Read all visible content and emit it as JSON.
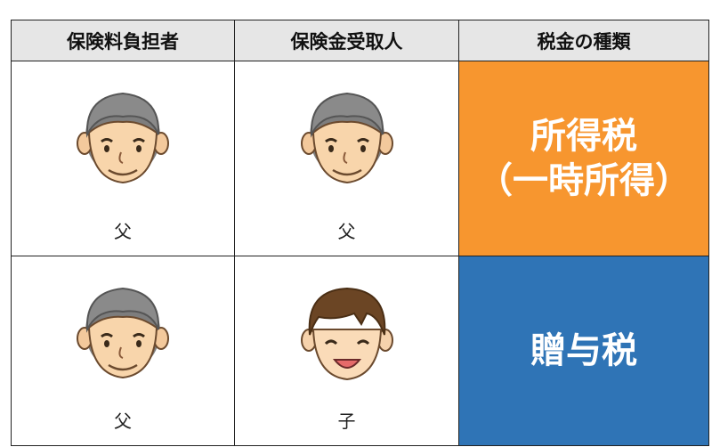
{
  "table": {
    "header": [
      "保険料負担者",
      "保険金受取人",
      "税金の種類"
    ],
    "rows": [
      {
        "payer": "父",
        "receiver": "父",
        "tax": [
          "所得税",
          "（一時所得）"
        ]
      },
      {
        "payer": "父",
        "receiver": "子",
        "tax": [
          "贈与税"
        ]
      }
    ]
  }
}
